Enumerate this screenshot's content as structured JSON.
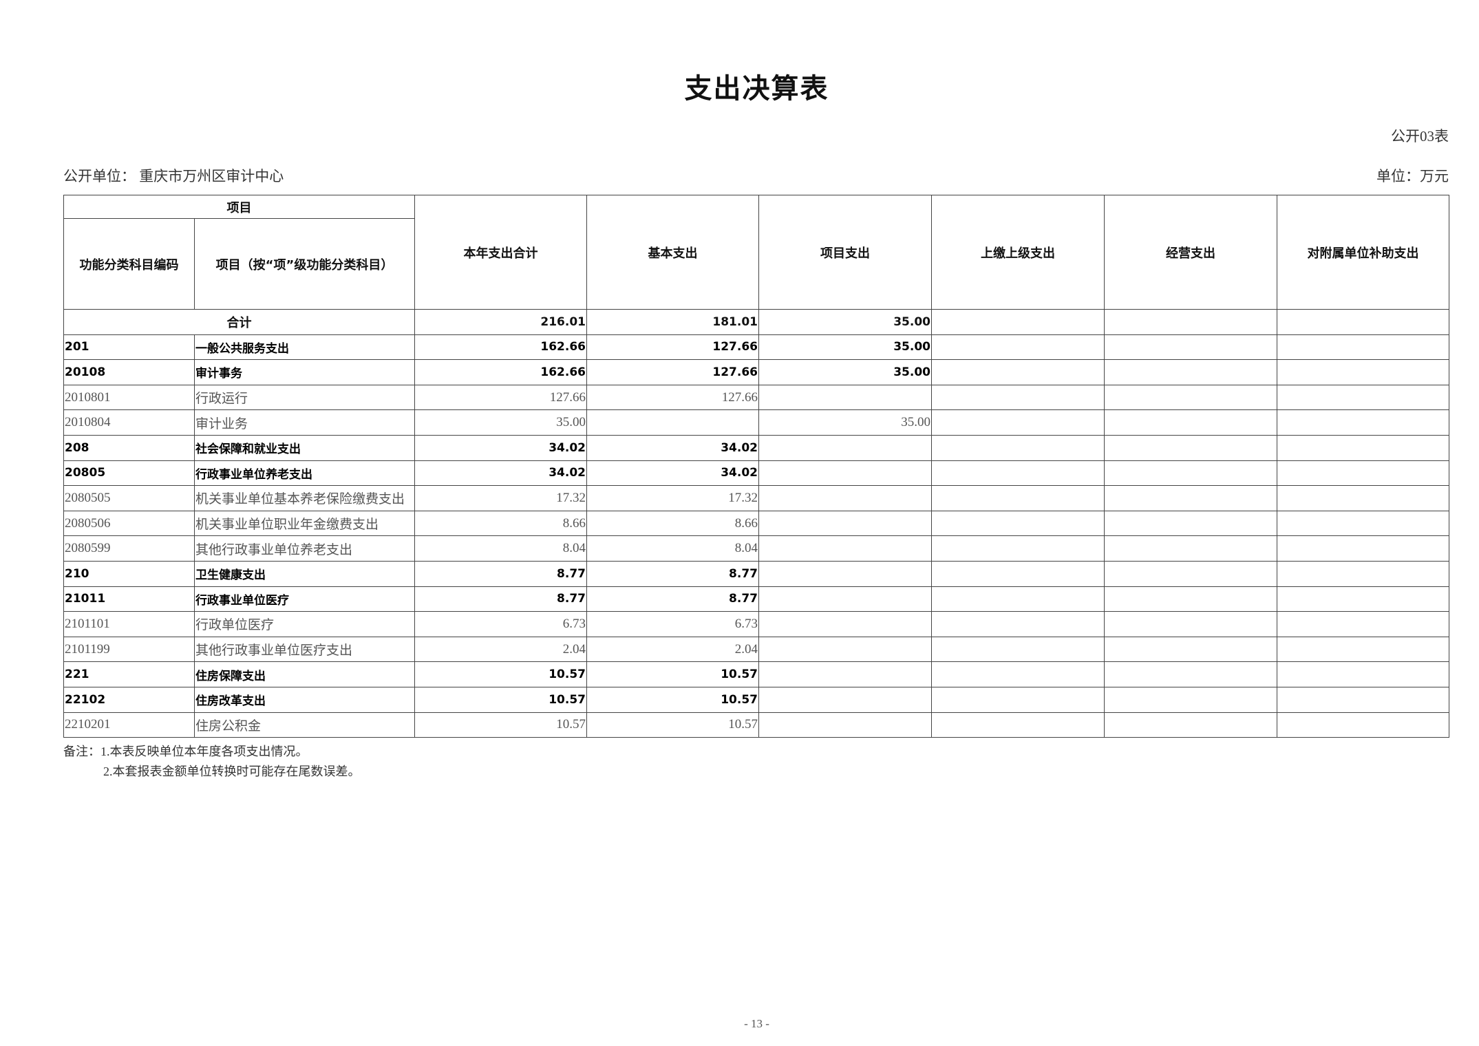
{
  "title": "支出决算表",
  "table_no": "公开03表",
  "unit_name": "公开单位：  重庆市万州区审计中心",
  "unit": "单位：万元",
  "headers": {
    "project": "项目",
    "code": "功能分类科目编码",
    "name": "项目（按“项”级功能分类科目）",
    "columns": [
      "本年支出合计",
      "基本支出",
      "项目支出",
      "上缴上级支出",
      "经营支出",
      "对附属单位补助支出"
    ]
  },
  "total": {
    "label": "合计",
    "values": [
      "216.01",
      "181.01",
      "35.00",
      "",
      "",
      ""
    ]
  },
  "rows": [
    {
      "code": "201",
      "name": "一般公共服务支出",
      "bold": true,
      "values": [
        "162.66",
        "127.66",
        "35.00",
        "",
        "",
        ""
      ]
    },
    {
      "code": "20108",
      "name": "审计事务",
      "bold": true,
      "values": [
        "162.66",
        "127.66",
        "35.00",
        "",
        "",
        ""
      ]
    },
    {
      "code": "2010801",
      "name": "行政运行",
      "bold": false,
      "values": [
        "127.66",
        "127.66",
        "",
        "",
        "",
        ""
      ]
    },
    {
      "code": "2010804",
      "name": "审计业务",
      "bold": false,
      "values": [
        "35.00",
        "",
        "35.00",
        "",
        "",
        ""
      ]
    },
    {
      "code": "208",
      "name": "社会保障和就业支出",
      "bold": true,
      "values": [
        "34.02",
        "34.02",
        "",
        "",
        "",
        ""
      ]
    },
    {
      "code": "20805",
      "name": "行政事业单位养老支出",
      "bold": true,
      "values": [
        "34.02",
        "34.02",
        "",
        "",
        "",
        ""
      ]
    },
    {
      "code": "2080505",
      "name": "机关事业单位基本养老保险缴费支出",
      "bold": false,
      "values": [
        "17.32",
        "17.32",
        "",
        "",
        "",
        ""
      ]
    },
    {
      "code": "2080506",
      "name": "机关事业单位职业年金缴费支出",
      "bold": false,
      "values": [
        "8.66",
        "8.66",
        "",
        "",
        "",
        ""
      ]
    },
    {
      "code": "2080599",
      "name": "其他行政事业单位养老支出",
      "bold": false,
      "values": [
        "8.04",
        "8.04",
        "",
        "",
        "",
        ""
      ]
    },
    {
      "code": "210",
      "name": "卫生健康支出",
      "bold": true,
      "values": [
        "8.77",
        "8.77",
        "",
        "",
        "",
        ""
      ]
    },
    {
      "code": "21011",
      "name": "行政事业单位医疗",
      "bold": true,
      "values": [
        "8.77",
        "8.77",
        "",
        "",
        "",
        ""
      ]
    },
    {
      "code": "2101101",
      "name": "行政单位医疗",
      "bold": false,
      "values": [
        "6.73",
        "6.73",
        "",
        "",
        "",
        ""
      ]
    },
    {
      "code": "2101199",
      "name": "其他行政事业单位医疗支出",
      "bold": false,
      "values": [
        "2.04",
        "2.04",
        "",
        "",
        "",
        ""
      ]
    },
    {
      "code": "221",
      "name": "住房保障支出",
      "bold": true,
      "values": [
        "10.57",
        "10.57",
        "",
        "",
        "",
        ""
      ]
    },
    {
      "code": "22102",
      "name": "住房改革支出",
      "bold": true,
      "values": [
        "10.57",
        "10.57",
        "",
        "",
        "",
        ""
      ]
    },
    {
      "code": "2210201",
      "name": "住房公积金",
      "bold": false,
      "values": [
        "10.57",
        "10.57",
        "",
        "",
        "",
        ""
      ]
    }
  ],
  "notes": [
    "备注：1.本表反映单位本年度各项支出情况。",
    "2.本套报表金额单位转换时可能存在尾数误差。"
  ],
  "page_number": "- 13 -"
}
